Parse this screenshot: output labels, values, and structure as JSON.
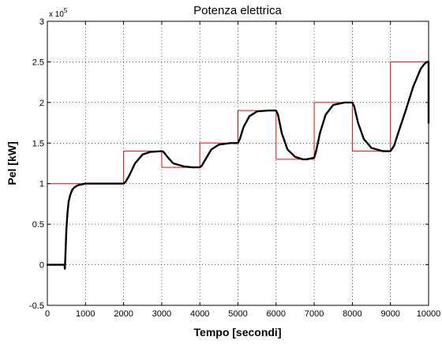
{
  "chart_data": {
    "type": "line",
    "title": "Potenza elettrica",
    "xlabel": "Tempo [secondi]",
    "ylabel": "Pel [kW]",
    "exponent_label": "x 10",
    "exponent_power": "5",
    "xlim": [
      0,
      10000
    ],
    "ylim": [
      -0.5,
      3
    ],
    "x_ticks": [
      0,
      1000,
      2000,
      3000,
      4000,
      5000,
      6000,
      7000,
      8000,
      9000,
      10000
    ],
    "y_ticks": [
      -0.5,
      0,
      0.5,
      1,
      1.5,
      2,
      2.5,
      3
    ],
    "x_tick_labels": [
      "0",
      "1000",
      "2000",
      "3000",
      "4000",
      "5000",
      "6000",
      "7000",
      "8000",
      "9000",
      "10000"
    ],
    "y_tick_labels": [
      "-0.5",
      "0",
      "0.5",
      "1",
      "1.5",
      "2",
      "2.5",
      "3"
    ],
    "grid": true,
    "series": [
      {
        "color": "#ff0000",
        "style": "step",
        "x": [
          0,
          2000,
          2000,
          3000,
          3000,
          4000,
          4000,
          5000,
          5000,
          6000,
          6000,
          7000,
          7000,
          8000,
          8000,
          9000,
          9000,
          10000
        ],
        "values": [
          1.0,
          1.0,
          1.4,
          1.4,
          1.2,
          1.2,
          1.5,
          1.5,
          1.9,
          1.9,
          1.3,
          1.3,
          2.0,
          2.0,
          1.4,
          1.4,
          2.5,
          2.5
        ]
      },
      {
        "color": "#000000",
        "style": "line",
        "x": [
          0,
          450,
          460,
          480,
          500,
          530,
          560,
          600,
          650,
          700,
          800,
          900,
          1000,
          1500,
          2000,
          2050,
          2150,
          2300,
          2500,
          2700,
          3000,
          3050,
          3150,
          3300,
          3600,
          3800,
          4000,
          4050,
          4150,
          4300,
          4500,
          4800,
          5000,
          5050,
          5150,
          5300,
          5500,
          5800,
          6000,
          6050,
          6150,
          6300,
          6500,
          6700,
          6800,
          7000,
          7050,
          7150,
          7300,
          7500,
          7800,
          8000,
          8050,
          8150,
          8300,
          8500,
          8800,
          9000,
          9100,
          9200,
          9400,
          9600,
          9800,
          9900,
          9960,
          10000,
          10000
        ],
        "values": [
          0,
          0,
          -0.05,
          0.2,
          0.45,
          0.65,
          0.78,
          0.86,
          0.92,
          0.95,
          0.98,
          0.99,
          1.0,
          1.0,
          1.0,
          1.02,
          1.1,
          1.25,
          1.36,
          1.39,
          1.4,
          1.39,
          1.33,
          1.25,
          1.21,
          1.2,
          1.2,
          1.22,
          1.3,
          1.42,
          1.48,
          1.5,
          1.5,
          1.55,
          1.7,
          1.83,
          1.89,
          1.9,
          1.9,
          1.85,
          1.62,
          1.42,
          1.33,
          1.3,
          1.3,
          1.32,
          1.4,
          1.62,
          1.85,
          1.97,
          2.0,
          2.0,
          1.95,
          1.75,
          1.55,
          1.44,
          1.4,
          1.4,
          1.47,
          1.62,
          1.9,
          2.2,
          2.42,
          2.48,
          2.5,
          2.5,
          1.75
        ]
      }
    ]
  }
}
